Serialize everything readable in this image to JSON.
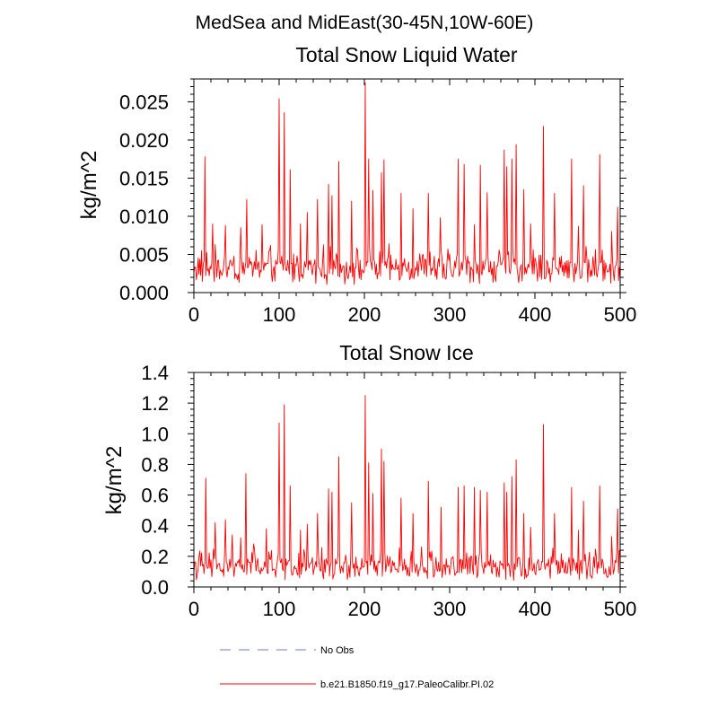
{
  "suptitle": "MedSea and MidEast(30-45N,10W-60E)",
  "chart_data": [
    {
      "type": "line",
      "title": "Total Snow Liquid Water",
      "xlabel": "",
      "ylabel": "kg/m^2",
      "xlim": [
        0,
        500
      ],
      "ylim": [
        0,
        0.028
      ],
      "xticks": [
        "0",
        "100",
        "200",
        "300",
        "400",
        "500"
      ],
      "yticks": [
        "0.000",
        "0.005",
        "0.010",
        "0.015",
        "0.020",
        "0.025"
      ],
      "series": [
        {
          "name": "b.e21.B1850.f19_g17.PaleoCalibr.PI.02",
          "color": "#ff0000",
          "base": 0.0035,
          "noise": 0.0022,
          "peaks": [
            [
              13,
              0.0178
            ],
            [
              22,
              0.009
            ],
            [
              37,
              0.0088
            ],
            [
              55,
              0.0085
            ],
            [
              62,
              0.0122
            ],
            [
              80,
              0.0089
            ],
            [
              100,
              0.0254
            ],
            [
              106,
              0.0236
            ],
            [
              113,
              0.0161
            ],
            [
              125,
              0.009
            ],
            [
              133,
              0.0105
            ],
            [
              145,
              0.0122
            ],
            [
              158,
              0.0142
            ],
            [
              162,
              0.0127
            ],
            [
              170,
              0.0172
            ],
            [
              185,
              0.012
            ],
            [
              201,
              0.0275
            ],
            [
              205,
              0.0175
            ],
            [
              210,
              0.0134
            ],
            [
              220,
              0.0157
            ],
            [
              223,
              0.0174
            ],
            [
              243,
              0.013
            ],
            [
              257,
              0.011
            ],
            [
              275,
              0.013
            ],
            [
              289,
              0.0098
            ],
            [
              310,
              0.0175
            ],
            [
              317,
              0.0168
            ],
            [
              329,
              0.0089
            ],
            [
              336,
              0.0167
            ],
            [
              344,
              0.0131
            ],
            [
              364,
              0.0187
            ],
            [
              367,
              0.0165
            ],
            [
              373,
              0.0175
            ],
            [
              378,
              0.0194
            ],
            [
              387,
              0.0135
            ],
            [
              395,
              0.009
            ],
            [
              410,
              0.0218
            ],
            [
              423,
              0.013
            ],
            [
              443,
              0.0175
            ],
            [
              451,
              0.0087
            ],
            [
              457,
              0.014
            ],
            [
              476,
              0.0181
            ],
            [
              490,
              0.008
            ],
            [
              497,
              0.0112
            ]
          ]
        }
      ]
    },
    {
      "type": "line",
      "title": "Total Snow Ice",
      "xlabel": "",
      "ylabel": "kg/m^2",
      "xlim": [
        0,
        500
      ],
      "ylim": [
        0,
        1.4
      ],
      "xticks": [
        "0",
        "100",
        "200",
        "300",
        "400",
        "500"
      ],
      "yticks": [
        "0.0",
        "0.2",
        "0.4",
        "0.6",
        "0.8",
        "1.0",
        "1.2",
        "1.4"
      ],
      "series": [
        {
          "name": "b.e21.B1850.f19_g17.PaleoCalibr.PI.02",
          "color": "#ff0000",
          "base": 0.14,
          "noise": 0.1,
          "peaks": [
            [
              14,
              0.71
            ],
            [
              25,
              0.42
            ],
            [
              37,
              0.44
            ],
            [
              45,
              0.34
            ],
            [
              55,
              0.32
            ],
            [
              61,
              0.74
            ],
            [
              70,
              0.28
            ],
            [
              85,
              0.38
            ],
            [
              100,
              1.07
            ],
            [
              106,
              1.19
            ],
            [
              113,
              0.66
            ],
            [
              125,
              0.37
            ],
            [
              133,
              0.41
            ],
            [
              145,
              0.48
            ],
            [
              158,
              0.64
            ],
            [
              162,
              0.62
            ],
            [
              170,
              0.85
            ],
            [
              185,
              0.55
            ],
            [
              201,
              1.25
            ],
            [
              205,
              0.81
            ],
            [
              210,
              0.61
            ],
            [
              220,
              0.9
            ],
            [
              223,
              0.82
            ],
            [
              243,
              0.58
            ],
            [
              257,
              0.48
            ],
            [
              275,
              0.69
            ],
            [
              290,
              0.52
            ],
            [
              310,
              0.65
            ],
            [
              317,
              0.66
            ],
            [
              329,
              0.65
            ],
            [
              336,
              0.63
            ],
            [
              344,
              0.62
            ],
            [
              364,
              0.68
            ],
            [
              367,
              0.62
            ],
            [
              373,
              0.72
            ],
            [
              378,
              0.83
            ],
            [
              387,
              0.48
            ],
            [
              395,
              0.39
            ],
            [
              410,
              1.06
            ],
            [
              423,
              0.48
            ],
            [
              443,
              0.65
            ],
            [
              451,
              0.37
            ],
            [
              457,
              0.56
            ],
            [
              476,
              0.66
            ],
            [
              490,
              0.33
            ],
            [
              497,
              0.51
            ]
          ]
        }
      ]
    }
  ],
  "legend": {
    "entries": [
      {
        "label": "No Obs",
        "style": "dashed",
        "color": "#9ea6dc"
      },
      {
        "label": "b.e21.B1850.f19_g17.PaleoCalibr.PI.02",
        "style": "solid",
        "color": "#ff0000"
      }
    ]
  }
}
